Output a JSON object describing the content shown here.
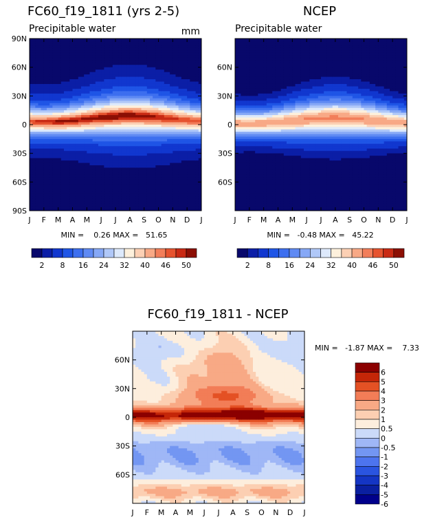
{
  "chart_data": [
    {
      "type": "heatmap",
      "title": "FC60_f19_1811 (yrs 2-5)",
      "subtitle": "Precipitable water",
      "units": "mm",
      "x_ticks": [
        "J",
        "F",
        "M",
        "A",
        "M",
        "J",
        "J",
        "A",
        "S",
        "O",
        "N",
        "D",
        "J"
      ],
      "y_ticks": [
        "90N",
        "60N",
        "30N",
        "0",
        "30S",
        "60S",
        "90S"
      ],
      "stats_text": "MIN =    0.26 MAX =   51.65",
      "min": 0.26,
      "max": 51.65,
      "colorbar_ticks": [
        "2",
        "8",
        "16",
        "24",
        "32",
        "40",
        "46",
        "50"
      ],
      "colorbar_levels": [
        2,
        4,
        8,
        12,
        16,
        20,
        24,
        28,
        32,
        36,
        40,
        44,
        46,
        48,
        50
      ],
      "model": "precip_model"
    },
    {
      "type": "heatmap",
      "title": "NCEP",
      "subtitle": "Precipitable water",
      "x_ticks": [
        "J",
        "F",
        "M",
        "A",
        "M",
        "J",
        "J",
        "A",
        "S",
        "O",
        "N",
        "D",
        "J"
      ],
      "y_ticks": [
        "60N",
        "30N",
        "0",
        "30S",
        "60S"
      ],
      "stats_text": "MIN =   -0.48 MAX =   45.22",
      "min": -0.48,
      "max": 45.22,
      "colorbar_ticks": [
        "2",
        "8",
        "16",
        "24",
        "32",
        "40",
        "46",
        "50"
      ],
      "colorbar_levels": [
        2,
        4,
        8,
        12,
        16,
        20,
        24,
        28,
        32,
        36,
        40,
        44,
        46,
        48,
        50
      ],
      "model": "precip_obs"
    },
    {
      "type": "heatmap",
      "title": "FC60_f19_1811 - NCEP",
      "x_ticks": [
        "J",
        "F",
        "M",
        "A",
        "M",
        "J",
        "J",
        "A",
        "S",
        "O",
        "N",
        "D",
        "J"
      ],
      "y_ticks": [
        "60N",
        "30N",
        "0",
        "30S",
        "60S"
      ],
      "stats_text": "MIN =   -1.87 MAX =    7.33",
      "min": -1.87,
      "max": 7.33,
      "colorbar_ticks": [
        "6",
        "5",
        "4",
        "3",
        "2",
        "1",
        "0.5",
        "0",
        "-0.5",
        "-1",
        "-2",
        "-3",
        "-4",
        "-5",
        "-6"
      ],
      "colorbar_levels": [
        -6,
        -5,
        -4,
        -3,
        -2,
        -1,
        -0.5,
        0,
        0.5,
        1,
        2,
        3,
        4,
        5,
        6
      ],
      "model": "difference"
    }
  ],
  "palette_precip": [
    "#08086b",
    "#0b1ea6",
    "#1137cf",
    "#1f55e6",
    "#3d6fef",
    "#5f8af3",
    "#86a8f6",
    "#b0c8f8",
    "#dde9fb",
    "#fdf0dc",
    "#fcd0b4",
    "#f8a986",
    "#f27e5a",
    "#e6532f",
    "#c92a14",
    "#8c0f04"
  ],
  "palette_diff": [
    "#00008b",
    "#0a1fa0",
    "#1435c4",
    "#2a54e0",
    "#4d74ee",
    "#7396f2",
    "#9fb7f6",
    "#cbdaf9",
    "#fdeedd",
    "#fccfb2",
    "#f8a985",
    "#f27d57",
    "#e45124",
    "#c42608",
    "#8b0000"
  ]
}
